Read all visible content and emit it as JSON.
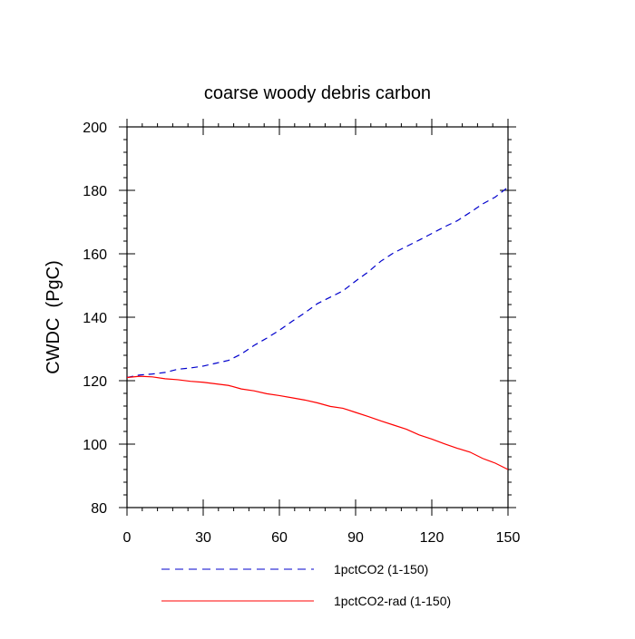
{
  "chart_data": {
    "type": "line",
    "title": "coarse woody debris carbon",
    "xlabel": "",
    "ylabel": "CWDC  (PgC)",
    "xlim": [
      0,
      150
    ],
    "ylim": [
      80,
      200
    ],
    "x_ticks": [
      0,
      30,
      60,
      90,
      120,
      150
    ],
    "y_ticks": [
      80,
      100,
      120,
      140,
      160,
      180,
      200
    ],
    "grid": false,
    "legend_position": "bottom",
    "series": [
      {
        "name": "1pctCO2 (1-150)",
        "color": "#0000cc",
        "dash": "dashed",
        "x": [
          0,
          5,
          10,
          15,
          20,
          25,
          30,
          35,
          40,
          45,
          50,
          55,
          60,
          65,
          70,
          75,
          80,
          85,
          90,
          95,
          100,
          105,
          110,
          115,
          120,
          125,
          130,
          135,
          140,
          145,
          150
        ],
        "y": [
          121,
          121.8,
          122.1,
          122.6,
          123.6,
          124,
          124.6,
          125.5,
          126.4,
          128.4,
          131.1,
          133.4,
          135.9,
          138.7,
          141.4,
          144.3,
          146.3,
          148.3,
          151.4,
          154.3,
          157.7,
          160.3,
          162.3,
          164.3,
          166.4,
          168.5,
          170.4,
          173,
          175.7,
          177.9,
          181
        ]
      },
      {
        "name": "1pctCO2-rad (1-150)",
        "color": "#ff0000",
        "dash": "solid",
        "x": [
          0,
          5,
          10,
          15,
          20,
          25,
          30,
          35,
          40,
          45,
          50,
          55,
          60,
          65,
          70,
          75,
          80,
          85,
          90,
          95,
          100,
          105,
          110,
          115,
          120,
          125,
          130,
          135,
          140,
          145,
          150
        ],
        "y": [
          121,
          121.4,
          121.2,
          120.6,
          120.3,
          119.8,
          119.5,
          119,
          118.5,
          117.4,
          116.8,
          115.9,
          115.3,
          114.6,
          113.9,
          113,
          111.9,
          111.3,
          110,
          108.7,
          107.3,
          106,
          104.7,
          102.9,
          101.6,
          100.1,
          98.7,
          97.5,
          95.5,
          94,
          92
        ]
      }
    ]
  }
}
